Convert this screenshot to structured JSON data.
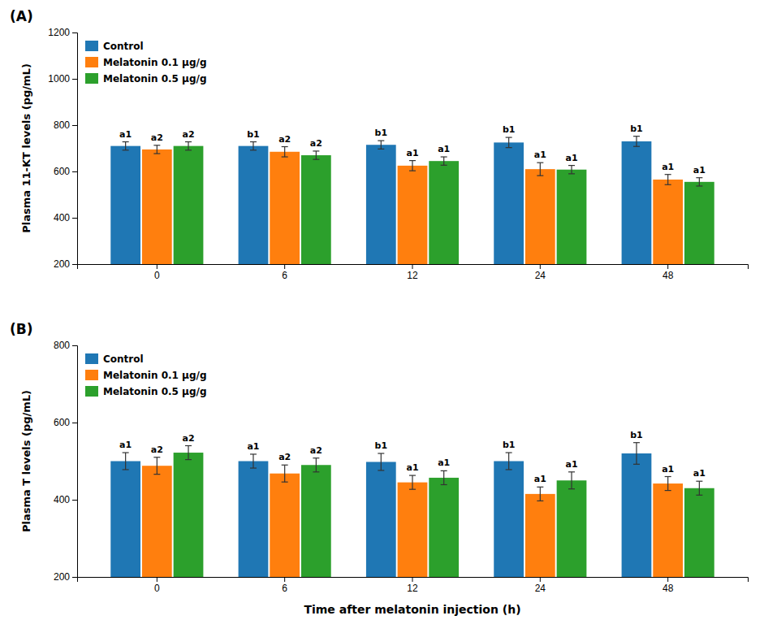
{
  "chart_data": [
    {
      "type": "bar",
      "title": "(A)",
      "ylabel": "Plasma 11-KT levels (pg/mL)",
      "categories": [
        "0",
        "6",
        "12",
        "24",
        "48"
      ],
      "series": [
        {
          "name": "Control",
          "values": [
            710,
            710,
            715,
            725,
            730
          ],
          "errors": [
            18,
            18,
            18,
            22,
            22
          ],
          "annotations": [
            "a1",
            "b1",
            "b1",
            "b1",
            "b1"
          ]
        },
        {
          "name": "Melatonin 0.1 μg/g",
          "values": [
            695,
            685,
            625,
            610,
            565
          ],
          "errors": [
            18,
            22,
            22,
            28,
            22
          ],
          "annotations": [
            "a2",
            "a2",
            "a1",
            "a1",
            "a1"
          ]
        },
        {
          "name": "Melatonin 0.5 μg/g",
          "values": [
            710,
            670,
            645,
            608,
            555
          ],
          "errors": [
            18,
            18,
            18,
            18,
            18
          ],
          "annotations": [
            "a2",
            "a2",
            "a1",
            "a1",
            "a1"
          ]
        }
      ],
      "ylim": [
        200,
        1200
      ],
      "yticks": [
        200,
        400,
        600,
        800,
        1000,
        1200
      ],
      "grid": false,
      "legend": "upper left"
    },
    {
      "type": "bar",
      "title": "(B)",
      "ylabel": "Plasma T levels (pg/mL)",
      "xlabel": "Time after melatonin injection (h)",
      "categories": [
        "0",
        "6",
        "12",
        "24",
        "48"
      ],
      "series": [
        {
          "name": "Control",
          "values": [
            500,
            500,
            498,
            500,
            520
          ],
          "errors": [
            22,
            18,
            22,
            22,
            28
          ],
          "annotations": [
            "a1",
            "a1",
            "b1",
            "b1",
            "b1"
          ]
        },
        {
          "name": "Melatonin 0.1 μg/g",
          "values": [
            488,
            468,
            445,
            415,
            442
          ],
          "errors": [
            22,
            22,
            18,
            18,
            18
          ],
          "annotations": [
            "a2",
            "a2",
            "a1",
            "a1",
            "a1"
          ]
        },
        {
          "name": "Melatonin 0.5 μg/g",
          "values": [
            522,
            490,
            457,
            450,
            430
          ],
          "errors": [
            18,
            18,
            18,
            22,
            18
          ],
          "annotations": [
            "a2",
            "a2",
            "a1",
            "a1",
            "a1"
          ]
        }
      ],
      "ylim": [
        200,
        800
      ],
      "yticks": [
        200,
        400,
        600,
        800
      ],
      "grid": false,
      "legend": "upper left"
    }
  ]
}
